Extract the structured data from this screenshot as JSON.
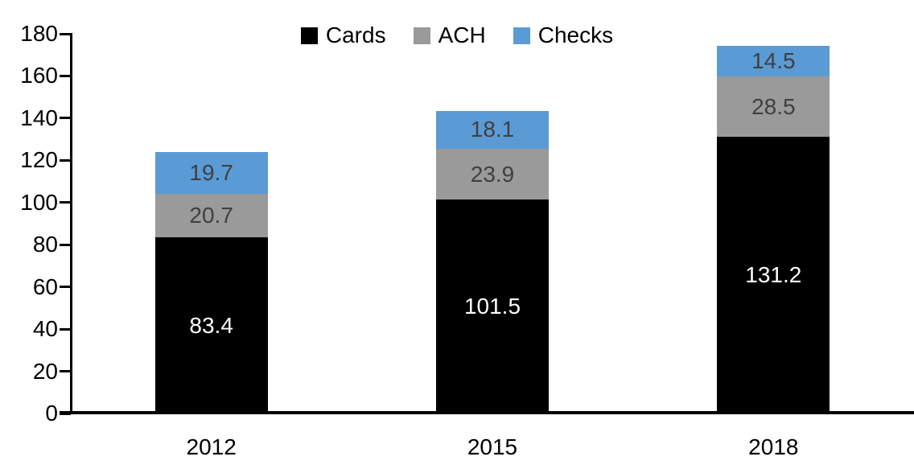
{
  "chart_data": {
    "type": "bar",
    "stacked": true,
    "title": "",
    "categories": [
      "2012",
      "2015",
      "2018"
    ],
    "series": [
      {
        "name": "Cards",
        "color": "#000000",
        "label_color": "#ffffff",
        "values": [
          83.4,
          101.5,
          131.2
        ]
      },
      {
        "name": "ACH",
        "color": "#9a9a9a",
        "label_color": "#404040",
        "values": [
          20.7,
          23.9,
          28.5
        ]
      },
      {
        "name": "Checks",
        "color": "#5b9bd5",
        "label_color": "#3f3f3f",
        "values": [
          19.7,
          18.1,
          14.5
        ]
      }
    ],
    "totals": [
      123.8,
      143.5,
      174.2
    ],
    "ylim": [
      0,
      180
    ],
    "ytick_step": 20,
    "ytick_labels": [
      "0",
      "20",
      "40",
      "60",
      "80",
      "100",
      "120",
      "140",
      "160",
      "180"
    ],
    "xlabel": "",
    "ylabel": "",
    "legend_position": "top",
    "legend_entries": [
      "Cards",
      "ACH",
      "Checks"
    ],
    "grid": false,
    "axis_color": "#000000",
    "background_color": "#ffffff"
  }
}
